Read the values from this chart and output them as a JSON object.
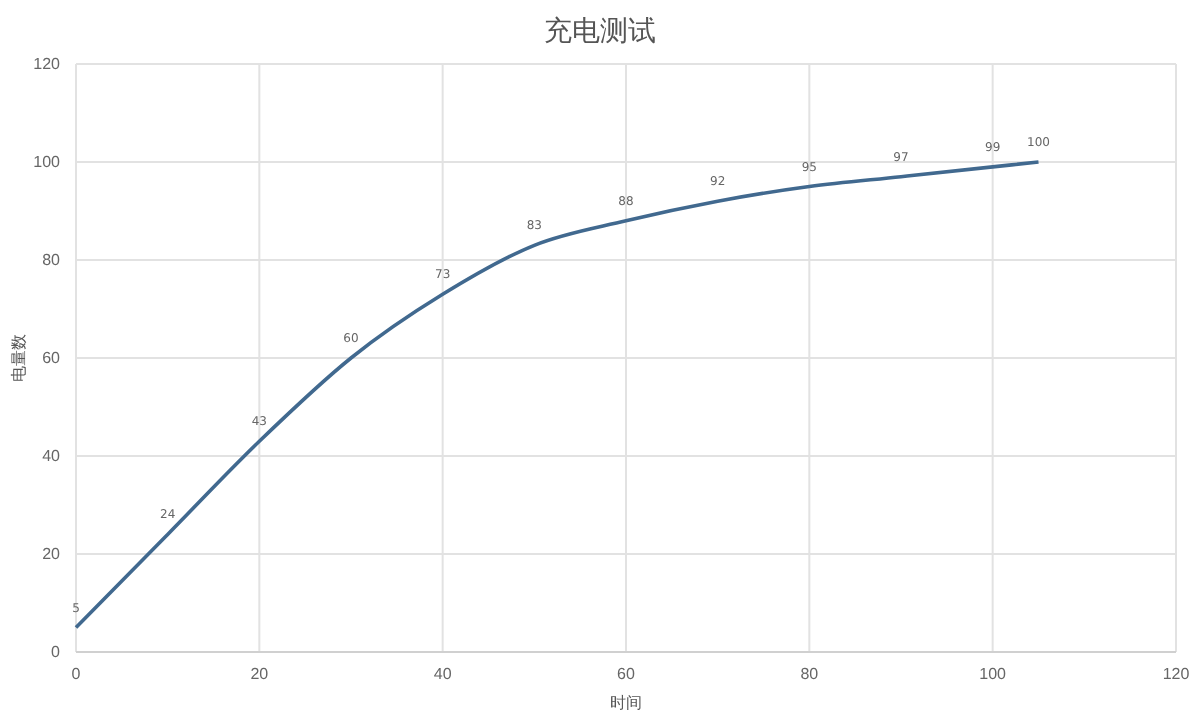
{
  "chart_data": {
    "type": "line",
    "title": "充电测试",
    "xlabel": "时间",
    "ylabel": "电量数",
    "x": [
      0,
      10,
      20,
      30,
      40,
      50,
      60,
      70,
      80,
      90,
      100,
      105
    ],
    "series": [
      {
        "color": "#41698f",
        "values": [
          5,
          24,
          43,
          60,
          73,
          83,
          88,
          92,
          95,
          97,
          99,
          100
        ]
      }
    ],
    "xlim": [
      0,
      120
    ],
    "xticks": [
      0,
      20,
      40,
      60,
      80,
      100,
      120
    ],
    "ylim": [
      0,
      120
    ],
    "yticks": [
      0,
      20,
      40,
      60,
      80,
      100,
      120
    ],
    "grid": true,
    "data_labels": true,
    "marker": "none",
    "line_style": "solid"
  }
}
